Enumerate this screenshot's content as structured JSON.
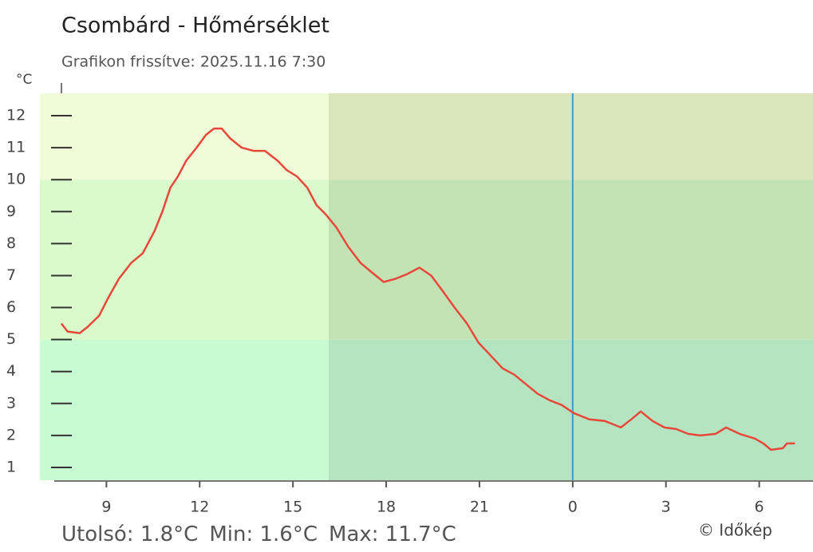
{
  "chart_data": {
    "type": "line",
    "title": "Csombárd - Hőmérséklet",
    "subtitle": "Grafikon frissítve: 2025.11.16 7:30",
    "y_unit": "°C",
    "x": [
      7.55,
      7.75,
      8.14,
      8.4,
      8.77,
      9.03,
      9.4,
      9.8,
      10.17,
      10.55,
      10.8,
      11.06,
      11.3,
      11.57,
      11.9,
      12.2,
      12.46,
      12.71,
      12.97,
      13.35,
      13.73,
      14.1,
      14.5,
      14.8,
      15.13,
      15.46,
      15.76,
      16.07,
      16.4,
      16.78,
      17.17,
      17.54,
      17.92,
      18.3,
      18.68,
      19.07,
      19.45,
      19.83,
      20.2,
      20.6,
      20.97,
      21.36,
      21.74,
      22.12,
      22.5,
      22.88,
      23.26,
      23.65,
      24.03,
      24.54,
      25.04,
      25.55,
      25.88,
      26.19,
      26.57,
      26.95,
      27.33,
      27.71,
      28.1,
      28.6,
      28.93,
      29.37,
      29.87,
      30.13,
      30.38,
      30.76,
      30.89,
      31.15
    ],
    "values": [
      5.5,
      5.25,
      5.2,
      5.4,
      5.75,
      6.25,
      6.9,
      7.4,
      7.7,
      8.4,
      9.0,
      9.75,
      10.1,
      10.6,
      11.0,
      11.4,
      11.6,
      11.6,
      11.3,
      11.0,
      10.9,
      10.9,
      10.6,
      10.3,
      10.1,
      9.75,
      9.2,
      8.9,
      8.5,
      7.9,
      7.4,
      7.1,
      6.8,
      6.9,
      7.05,
      7.25,
      7.0,
      6.5,
      6.0,
      5.5,
      4.9,
      4.5,
      4.1,
      3.9,
      3.6,
      3.3,
      3.1,
      2.95,
      2.7,
      2.5,
      2.45,
      2.25,
      2.5,
      2.75,
      2.45,
      2.25,
      2.2,
      2.05,
      2.0,
      2.05,
      2.25,
      2.05,
      1.9,
      1.75,
      1.55,
      1.6,
      1.75,
      1.75
    ],
    "color": "#e8483a",
    "xlim": [
      6.86,
      31.73
    ],
    "ylim": [
      0.6,
      12.7
    ],
    "xticks": [
      9,
      12,
      15,
      18,
      21,
      {
        "value": 24,
        "label": "0"
      },
      {
        "value": 27,
        "label": "3"
      },
      {
        "value": 30,
        "label": "6"
      }
    ],
    "yticks": [
      1,
      2,
      3,
      4,
      5,
      6,
      7,
      8,
      9,
      10,
      11,
      12
    ],
    "bands": [
      {
        "from": 0.6,
        "to": 5,
        "day_color": "#c9fbd3",
        "night_color": "#b5e4c0"
      },
      {
        "from": 5,
        "to": 10,
        "day_color": "#dafacb",
        "night_color": "#c4e3b5"
      },
      {
        "from": 10,
        "to": 12.7,
        "day_color": "#effcd7",
        "night_color": "#d9e6bb"
      }
    ],
    "night_from": 16.15,
    "now_line": {
      "x": 24,
      "color": "#3a9ad9"
    },
    "footer": [
      "Utolsó: 1.8°C",
      "Min: 1.6°C",
      "Max: 11.7°C"
    ],
    "credit": "© Időkép"
  }
}
